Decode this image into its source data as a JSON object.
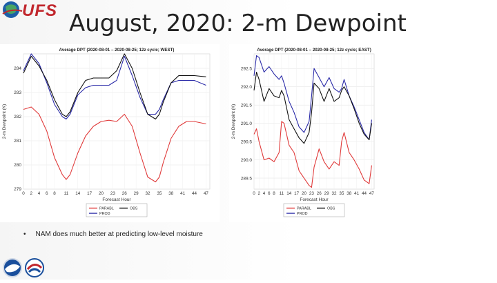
{
  "slide": {
    "title": "August, 2020:  2-m Dewpoint",
    "logo_text": "UFS",
    "bullet_marker": "•",
    "bullet": "NAM does much better at predicting low-level moisture"
  },
  "colors": {
    "parabl": "#e03a3a",
    "prod": "#2a2aa8",
    "obs": "#111111",
    "logo_red": "#c1272d"
  },
  "chart_data": [
    {
      "id": "west",
      "type": "line",
      "title": "Average DPT (2020-08-01 – 2020-08-25; 12z cycle; WEST)",
      "xlabel": "Forecast Hour",
      "ylabel": "2-m Dewpoint (K)",
      "ylim": [
        279,
        284.6
      ],
      "yticks": [
        279,
        280,
        281,
        282,
        283,
        284
      ],
      "xticks": [
        0,
        2,
        4,
        6,
        8,
        11,
        14,
        17,
        20,
        23,
        26,
        29,
        32,
        35,
        38,
        41,
        44,
        47
      ],
      "x": [
        0,
        2,
        4,
        6,
        8,
        10,
        11,
        12,
        14,
        16,
        18,
        20,
        22,
        24,
        26,
        28,
        30,
        32,
        34,
        35,
        36,
        38,
        40,
        42,
        44,
        47
      ],
      "series": [
        {
          "name": "PARABL",
          "color_key": "parabl",
          "values": [
            282.3,
            282.4,
            282.1,
            281.4,
            280.3,
            279.6,
            279.4,
            279.6,
            280.5,
            281.2,
            281.6,
            281.8,
            281.85,
            281.8,
            282.1,
            281.6,
            280.5,
            279.5,
            279.3,
            279.5,
            280.1,
            281.1,
            281.6,
            281.8,
            281.8,
            281.7
          ]
        },
        {
          "name": "PROD",
          "color_key": "prod",
          "values": [
            283.9,
            284.6,
            284.2,
            283.4,
            282.5,
            282.0,
            281.9,
            282.1,
            282.9,
            283.2,
            283.3,
            283.3,
            283.3,
            283.5,
            284.5,
            283.7,
            282.8,
            282.1,
            282.1,
            282.3,
            282.7,
            283.4,
            283.5,
            283.5,
            283.5,
            283.3
          ]
        },
        {
          "name": "OBS",
          "color_key": "obs",
          "values": [
            283.8,
            284.5,
            284.1,
            283.5,
            282.7,
            282.1,
            282.0,
            282.2,
            283.0,
            283.5,
            283.6,
            283.6,
            283.6,
            283.9,
            284.6,
            284.0,
            283.0,
            282.1,
            281.9,
            282.1,
            282.6,
            283.4,
            283.7,
            283.7,
            283.7,
            283.65
          ]
        }
      ],
      "legend": [
        {
          "label": "PARABL",
          "color_key": "parabl"
        },
        {
          "label": "PROD",
          "color_key": "prod"
        },
        {
          "label": "OBS",
          "color_key": "obs"
        }
      ],
      "grid": true,
      "legend_position": "bottom"
    },
    {
      "id": "east",
      "type": "line",
      "title": "Average DPT (2020-08-01 – 2020-08-25; 12z cycle; EAST)",
      "xlabel": "Forecast Hour",
      "ylabel": "2-m Dewpoint (K)",
      "ylim": [
        289.2,
        292.9
      ],
      "yticks": [
        289.5,
        290.0,
        290.5,
        291.0,
        291.5,
        292.0,
        292.5
      ],
      "xticks": [
        0,
        2,
        4,
        6,
        8,
        11,
        14,
        17,
        20,
        23,
        26,
        29,
        32,
        35,
        38,
        41,
        44,
        47
      ],
      "x": [
        0,
        1,
        2,
        4,
        6,
        8,
        10,
        11,
        12,
        14,
        16,
        18,
        20,
        22,
        23,
        24,
        26,
        28,
        30,
        32,
        34,
        35,
        36,
        38,
        40,
        42,
        44,
        46,
        47
      ],
      "series": [
        {
          "name": "PARABL",
          "color_key": "parabl",
          "values": [
            290.7,
            290.85,
            290.5,
            290.0,
            290.05,
            289.95,
            290.2,
            291.05,
            291.0,
            290.4,
            290.2,
            289.7,
            289.5,
            289.3,
            289.25,
            289.8,
            290.3,
            289.95,
            289.75,
            289.95,
            289.85,
            290.5,
            290.75,
            290.2,
            290.0,
            289.75,
            289.45,
            289.35,
            289.85
          ]
        },
        {
          "name": "PROD",
          "color_key": "prod",
          "values": [
            292.3,
            292.85,
            292.8,
            292.4,
            292.55,
            292.35,
            292.2,
            292.3,
            292.1,
            291.6,
            291.3,
            290.9,
            290.75,
            291.05,
            291.75,
            292.5,
            292.25,
            292.0,
            292.25,
            291.95,
            291.85,
            291.95,
            292.2,
            291.75,
            291.45,
            291.1,
            290.75,
            290.55,
            291.1
          ]
        },
        {
          "name": "OBS",
          "color_key": "obs",
          "values": [
            291.9,
            292.4,
            292.2,
            291.6,
            291.95,
            291.75,
            291.7,
            291.9,
            291.75,
            291.1,
            290.85,
            290.6,
            290.45,
            290.75,
            291.3,
            292.1,
            291.95,
            291.6,
            291.95,
            291.6,
            291.7,
            291.9,
            292.0,
            291.75,
            291.4,
            291.0,
            290.7,
            290.55,
            291.0
          ]
        }
      ],
      "legend": [
        {
          "label": "PARABL",
          "color_key": "parabl"
        },
        {
          "label": "PROD",
          "color_key": "prod"
        },
        {
          "label": "OBS",
          "color_key": "obs"
        }
      ],
      "grid": true,
      "legend_position": "bottom"
    }
  ]
}
